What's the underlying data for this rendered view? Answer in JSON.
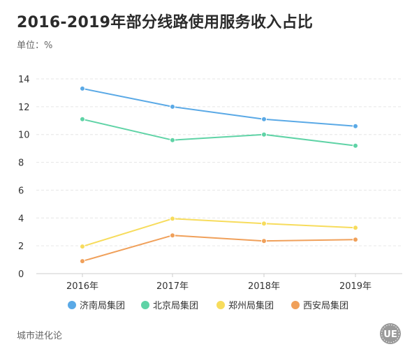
{
  "header": {
    "title": "2016-2019年部分线路使用服务收入占比",
    "unit": "单位：%"
  },
  "footer": {
    "source": "城市进化论",
    "logo_text": "UE"
  },
  "colors": {
    "background": "#ffffff",
    "grid": "#e6e6e6",
    "axis": "#cccccc",
    "tick_text": "#333333"
  },
  "chart_data": {
    "type": "line",
    "title": "2016-2019年部分线路使用服务收入占比",
    "xlabel": "",
    "ylabel": "单位：%",
    "categories": [
      "2016年",
      "2017年",
      "2018年",
      "2019年"
    ],
    "ylim": [
      0,
      14
    ],
    "yticks": [
      0,
      2,
      4,
      6,
      8,
      10,
      12,
      14
    ],
    "grid": true,
    "legend_position": "bottom",
    "series": [
      {
        "name": "济南局集团",
        "color": "#5aa9e6",
        "values": [
          13.3,
          12.0,
          11.1,
          10.6
        ]
      },
      {
        "name": "北京局集团",
        "color": "#5fd3a6",
        "values": [
          11.1,
          9.6,
          10.0,
          9.2
        ]
      },
      {
        "name": "郑州局集团",
        "color": "#f7dc5c",
        "values": [
          1.95,
          3.95,
          3.6,
          3.3
        ]
      },
      {
        "name": "西安局集团",
        "color": "#f0a05a",
        "values": [
          0.9,
          2.75,
          2.35,
          2.45
        ]
      }
    ]
  }
}
